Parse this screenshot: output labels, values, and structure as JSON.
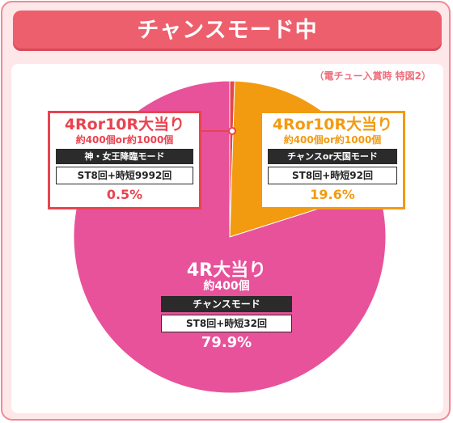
{
  "header": {
    "title": "チャンスモード中"
  },
  "note": "（電チュー入賞時 特図2）",
  "colors": {
    "frame": "#ef8a95",
    "title_bg": "#ed5f6c",
    "slice_small": "#e94350",
    "slice_mid": "#f29b11",
    "slice_main": "#e8529a"
  },
  "chart_data": {
    "type": "pie",
    "title": "チャンスモード中",
    "slices": [
      {
        "label": "4Ror10R大当り",
        "value": 0.5,
        "color": "#e94350"
      },
      {
        "label": "4Ror10R大当り",
        "value": 19.6,
        "color": "#f29b11"
      },
      {
        "label": "4R大当り",
        "value": 79.9,
        "color": "#e8529a"
      }
    ]
  },
  "boxes": {
    "left": {
      "head": "4Ror10R大当り",
      "sub": "約400個or約1000個",
      "mode": "神・女王降臨モード",
      "st": "ST8回+時短9992回",
      "pct": "0.5%"
    },
    "right": {
      "head": "4Ror10R大当り",
      "sub": "約400個or約1000個",
      "mode": "チャンスor天国モード",
      "st": "ST8回+時短92回",
      "pct": "19.6%"
    },
    "center": {
      "head": "4R大当り",
      "sub": "約400個",
      "mode": "チャンスモード",
      "st": "ST8回+時短32回",
      "pct": "79.9%"
    }
  }
}
